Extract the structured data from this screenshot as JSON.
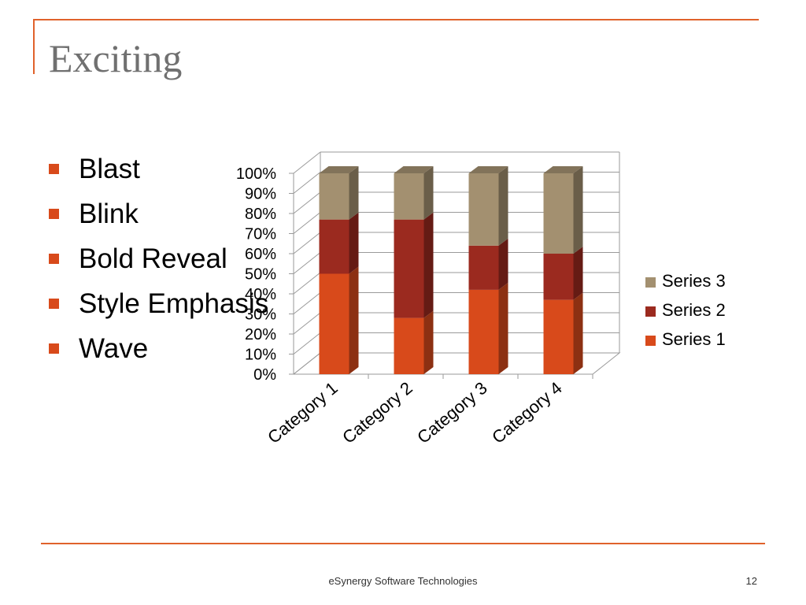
{
  "slide": {
    "title": "Exciting",
    "bullets": [
      "Blast",
      "Blink",
      "Bold Reveal",
      "Style Emphasis",
      "Wave"
    ],
    "footer": "eSynergy Software Technologies",
    "page_number": "12",
    "colors": {
      "accent": "#e0622b",
      "bullet": "#d84a1b"
    }
  },
  "chart_data": {
    "type": "bar",
    "stacked": "100%",
    "categories": [
      "Category 1",
      "Category 2",
      "Category 3",
      "Category 4"
    ],
    "series": [
      {
        "name": "Series 1",
        "values": [
          50,
          28,
          42,
          37
        ],
        "color": "#d84a1b"
      },
      {
        "name": "Series 2",
        "values": [
          27,
          49,
          22,
          23
        ],
        "color": "#9b2a1f"
      },
      {
        "name": "Series 3",
        "values": [
          23,
          23,
          36,
          40
        ],
        "color": "#a39070"
      }
    ],
    "ylim": [
      0,
      100
    ],
    "yticks": [
      "0%",
      "10%",
      "20%",
      "30%",
      "40%",
      "50%",
      "60%",
      "70%",
      "80%",
      "90%",
      "100%"
    ],
    "grid": true,
    "legend": "right",
    "title": "",
    "xlabel": "",
    "ylabel": ""
  }
}
